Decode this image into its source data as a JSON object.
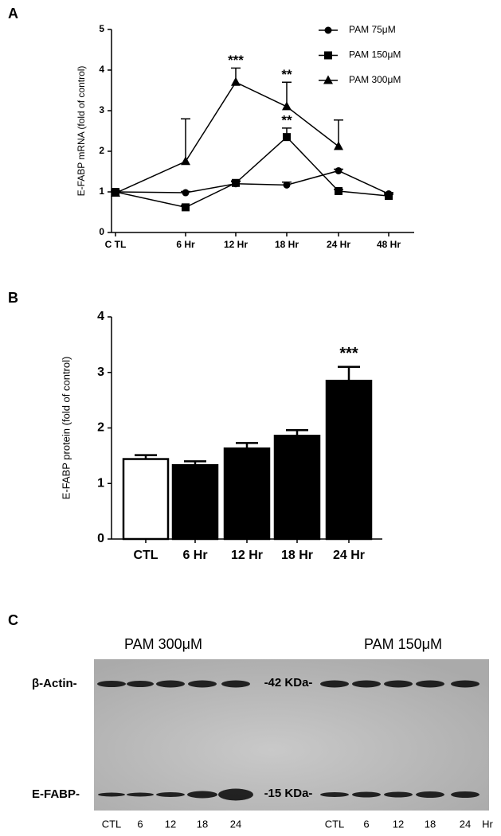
{
  "chart_data": [
    {
      "type": "line",
      "panel_label": "A",
      "ylabel": "E-FABP mRNA (fold of control)",
      "categories": [
        "C TL",
        "6 Hr",
        "12 Hr",
        "18 Hr",
        "24 Hr",
        "48 Hr"
      ],
      "ylim": [
        0,
        5
      ],
      "yticks": [
        0,
        1,
        2,
        3,
        4,
        5
      ],
      "legend": "upper right",
      "series": [
        {
          "name": "PAM 75μM",
          "color": "#000000",
          "marker": "circle",
          "values": [
            1.0,
            0.98,
            1.2,
            1.17,
            1.52,
            0.95
          ],
          "errors": [
            0.03,
            0.03,
            0.05,
            0.07,
            0.04,
            0.03
          ],
          "annotations": [
            null,
            null,
            null,
            null,
            null,
            null
          ]
        },
        {
          "name": "PAM 150μM",
          "color": "#000000",
          "marker": "square",
          "values": [
            1.0,
            0.62,
            1.22,
            2.35,
            1.02,
            0.9
          ],
          "errors": [
            0.03,
            0.05,
            0.05,
            0.22,
            0.04,
            0.04
          ],
          "annotations": [
            null,
            null,
            null,
            "**",
            null,
            null
          ]
        },
        {
          "name": "PAM 300μM",
          "color": "#000000",
          "marker": "triangle",
          "values": [
            0.97,
            1.75,
            3.7,
            3.1,
            2.12,
            null
          ],
          "errors": [
            0.03,
            1.05,
            0.35,
            0.6,
            0.65,
            null
          ],
          "annotations": [
            null,
            null,
            "***",
            "**",
            null,
            null
          ]
        }
      ]
    },
    {
      "type": "bar",
      "panel_label": "B",
      "ylabel": "E-FABP protein (fold of control)",
      "categories": [
        "CTL",
        "6 Hr",
        "12 Hr",
        "18 Hr",
        "24 Hr"
      ],
      "values": [
        1.44,
        1.33,
        1.63,
        1.86,
        2.85
      ],
      "errors": [
        0.07,
        0.07,
        0.1,
        0.1,
        0.25
      ],
      "colors": [
        "#ffffff",
        "#000000",
        "#000000",
        "#000000",
        "#000000"
      ],
      "annotations": [
        null,
        null,
        null,
        null,
        "***"
      ],
      "ylim": [
        0,
        4
      ],
      "yticks": [
        0,
        1,
        2,
        3,
        4
      ]
    }
  ],
  "blot": {
    "panel_label": "C",
    "groups": [
      {
        "title": "PAM 300μM",
        "lanes": [
          "CTL",
          "6",
          "12",
          "18",
          "24"
        ]
      },
      {
        "title": "PAM 150μM",
        "lanes": [
          "CTL",
          "6",
          "12",
          "18",
          "24"
        ]
      }
    ],
    "unit": "Hr",
    "rows": [
      {
        "name": "β-Actin-",
        "size": "-42 KDa-"
      },
      {
        "name": "E-FABP-",
        "size": "-15 KDa-"
      }
    ]
  }
}
